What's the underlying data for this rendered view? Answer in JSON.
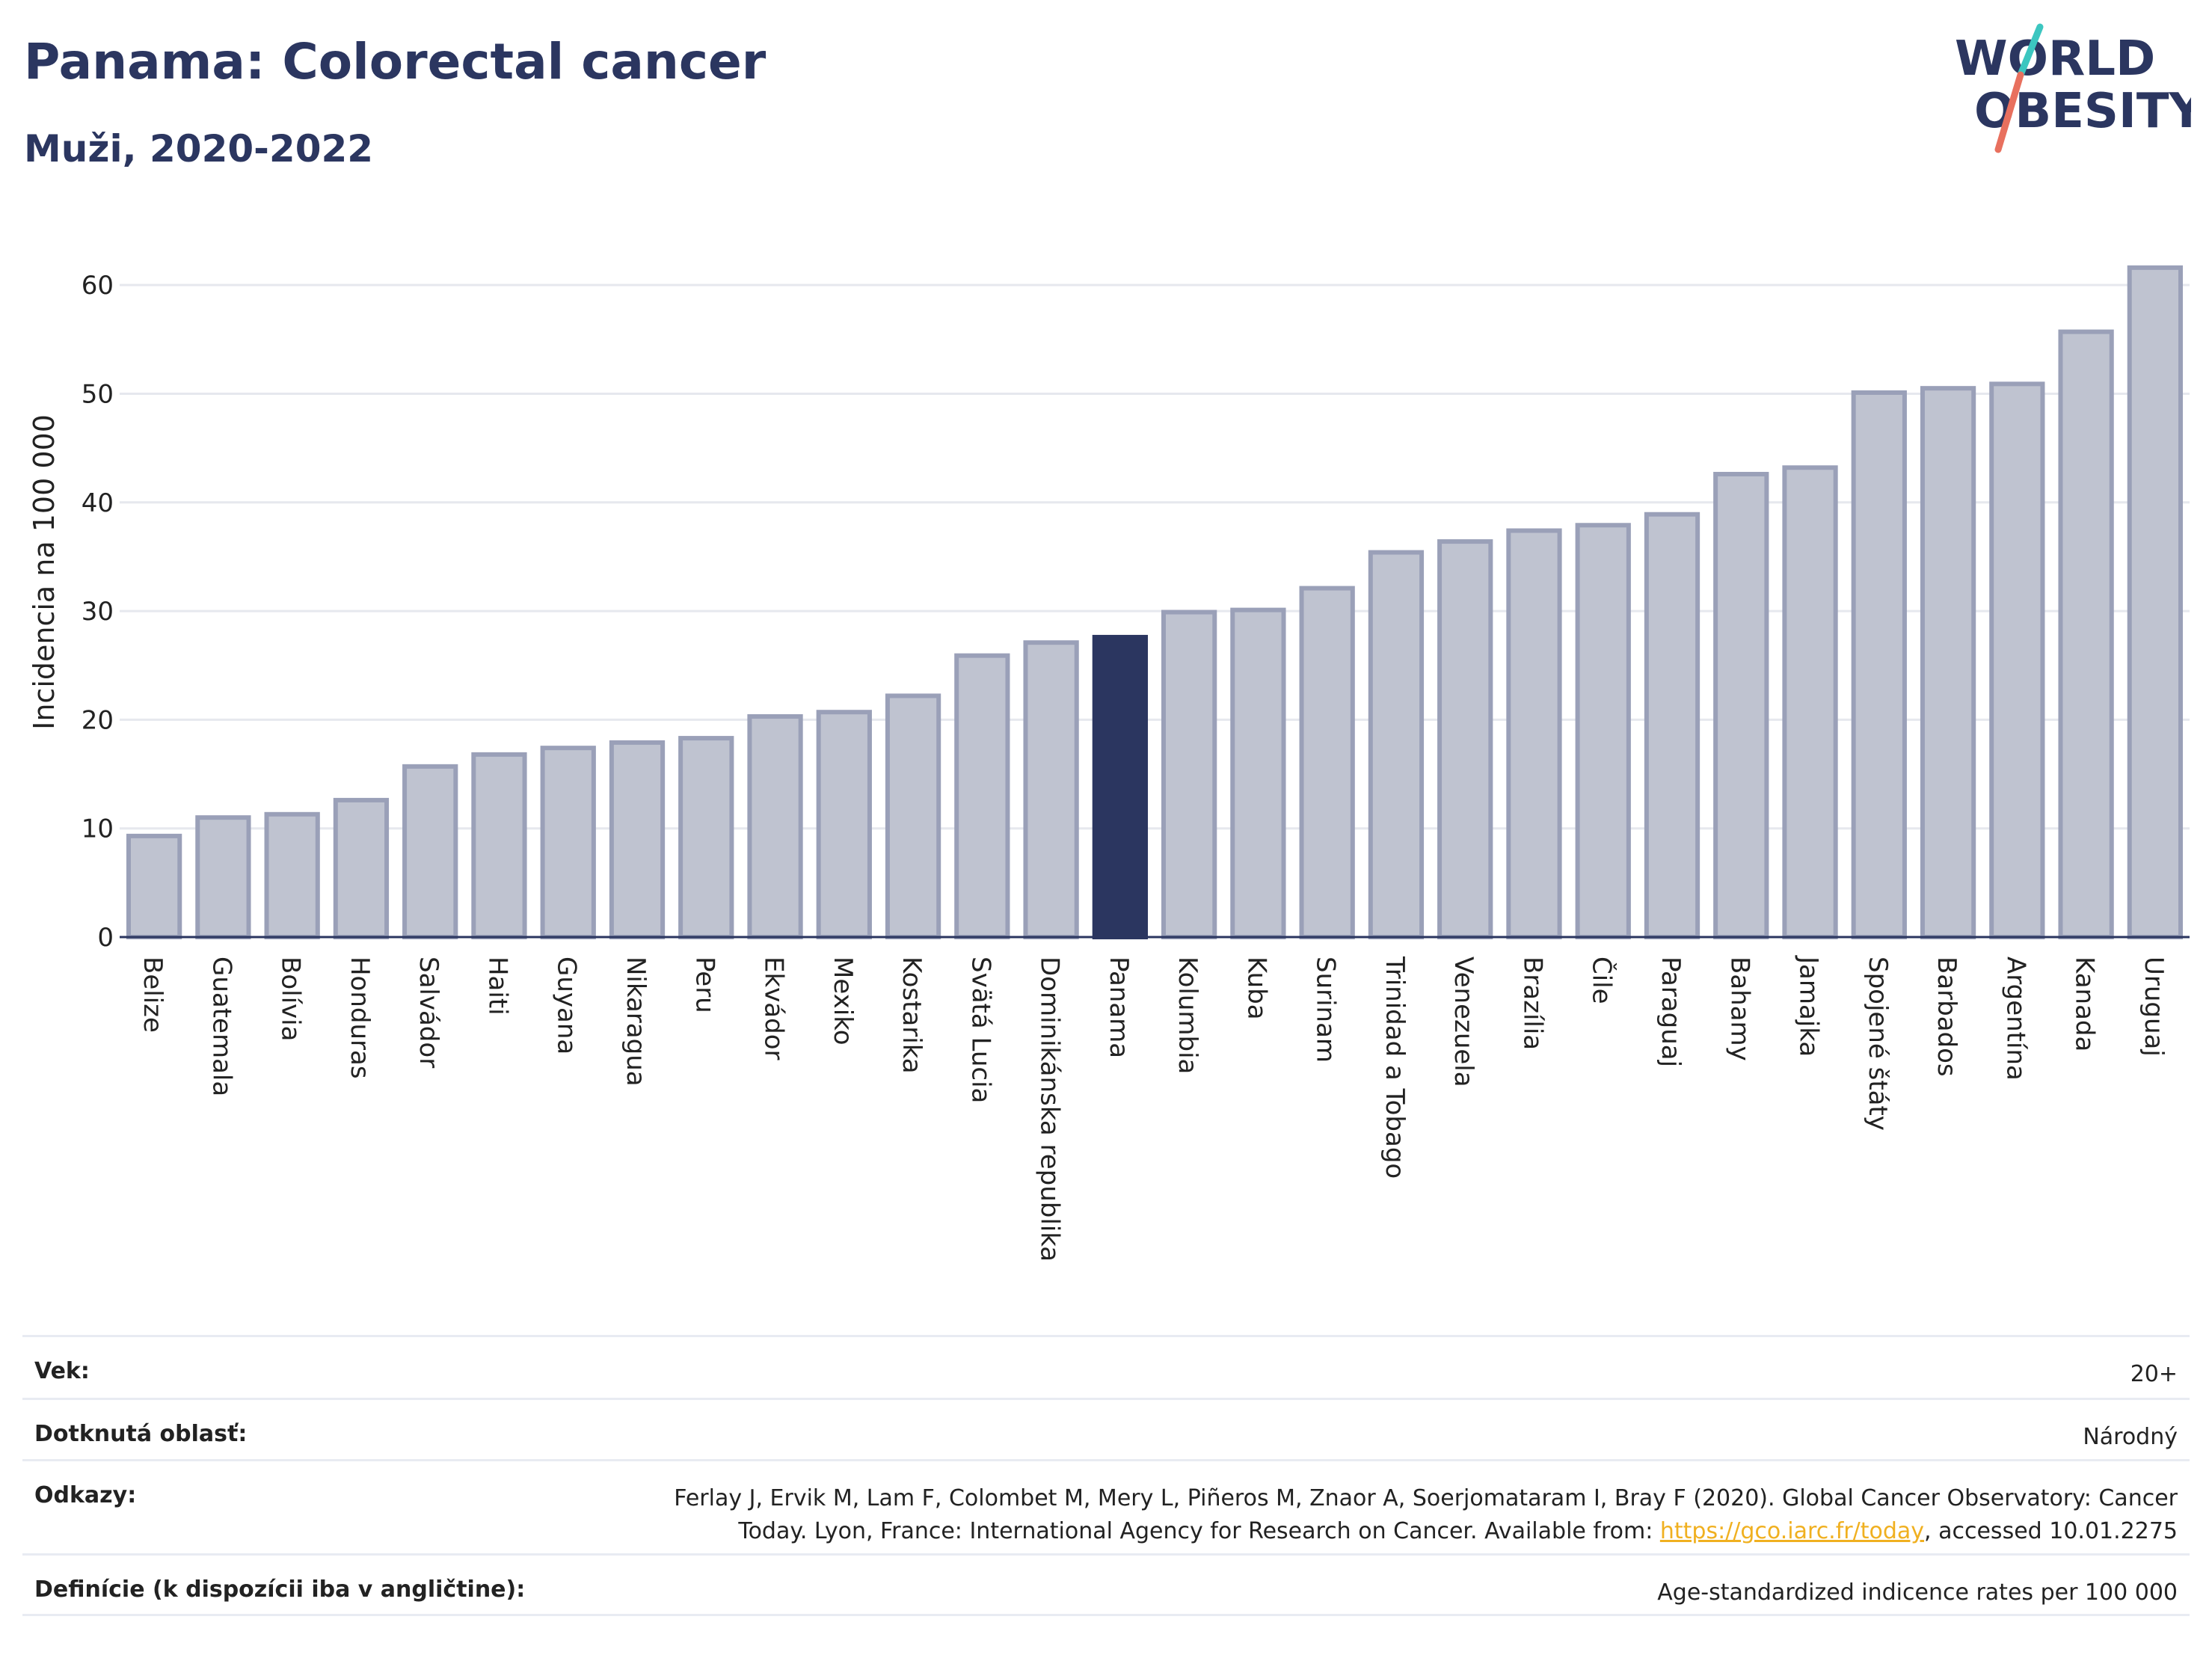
{
  "header": {
    "title": "Panama: Colorectal cancer",
    "subtitle": "Muži, 2020-2022"
  },
  "logo": {
    "line1": "WORLD",
    "line2": "OBESITY"
  },
  "colors": {
    "bar_default": "#bfc3d0",
    "bar_border": "#9aa0b8",
    "bar_highlight": "#2b3660",
    "title": "#2b3660",
    "accent_red": "#e8705e",
    "accent_teal": "#3cc6c0"
  },
  "chart_data": {
    "type": "bar",
    "ylabel": "Incidencia na 100 000",
    "ylim": [
      0,
      64
    ],
    "yticks": [
      0,
      10,
      20,
      30,
      40,
      50,
      60
    ],
    "highlight": "Panama",
    "categories": [
      "Belize",
      "Guatemala",
      "Bolívia",
      "Honduras",
      "Salvádor",
      "Haiti",
      "Guyana",
      "Nikaragua",
      "Peru",
      "Ekvádor",
      "Mexiko",
      "Kostarika",
      "Svätá Lucia",
      "Dominikánska republika",
      "Panama",
      "Kolumbia",
      "Kuba",
      "Surinam",
      "Trinidad a Tobago",
      "Venezuela",
      "Brazília",
      "Čile",
      "Paraguaj",
      "Bahamy",
      "Jamajka",
      "Spojené štáty",
      "Barbados",
      "Argentína",
      "Kanada",
      "Uruguaj"
    ],
    "values": [
      9.3,
      11.0,
      11.3,
      12.6,
      15.7,
      16.8,
      17.4,
      17.9,
      18.3,
      20.3,
      20.7,
      22.2,
      25.9,
      27.1,
      27.6,
      29.9,
      30.1,
      32.1,
      35.4,
      36.4,
      37.4,
      37.9,
      38.9,
      42.6,
      43.2,
      50.1,
      50.5,
      50.9,
      55.7,
      61.6
    ]
  },
  "info": {
    "age_label": "Vek:",
    "age_value": "20+",
    "area_label": "Dotknutá oblasť:",
    "area_value": "Národný",
    "refs_label": "Odkazy:",
    "refs_line1": "Ferlay J, Ervik M, Lam F, Colombet M, Mery L, Piñeros M, Znaor A, Soerjomataram I, Bray F (2020). Global Cancer Observatory: Cancer",
    "refs_line2_pre": "Today. Lyon, France: International Agency for Research on Cancer. Available from: ",
    "refs_link": "https://gco.iarc.fr/today",
    "refs_line2_post": ", accessed 10.01.2275",
    "def_label": "Definície (k dispozícii iba v angličtine):",
    "def_value": "Age-standardized indicence rates per 100 000"
  }
}
